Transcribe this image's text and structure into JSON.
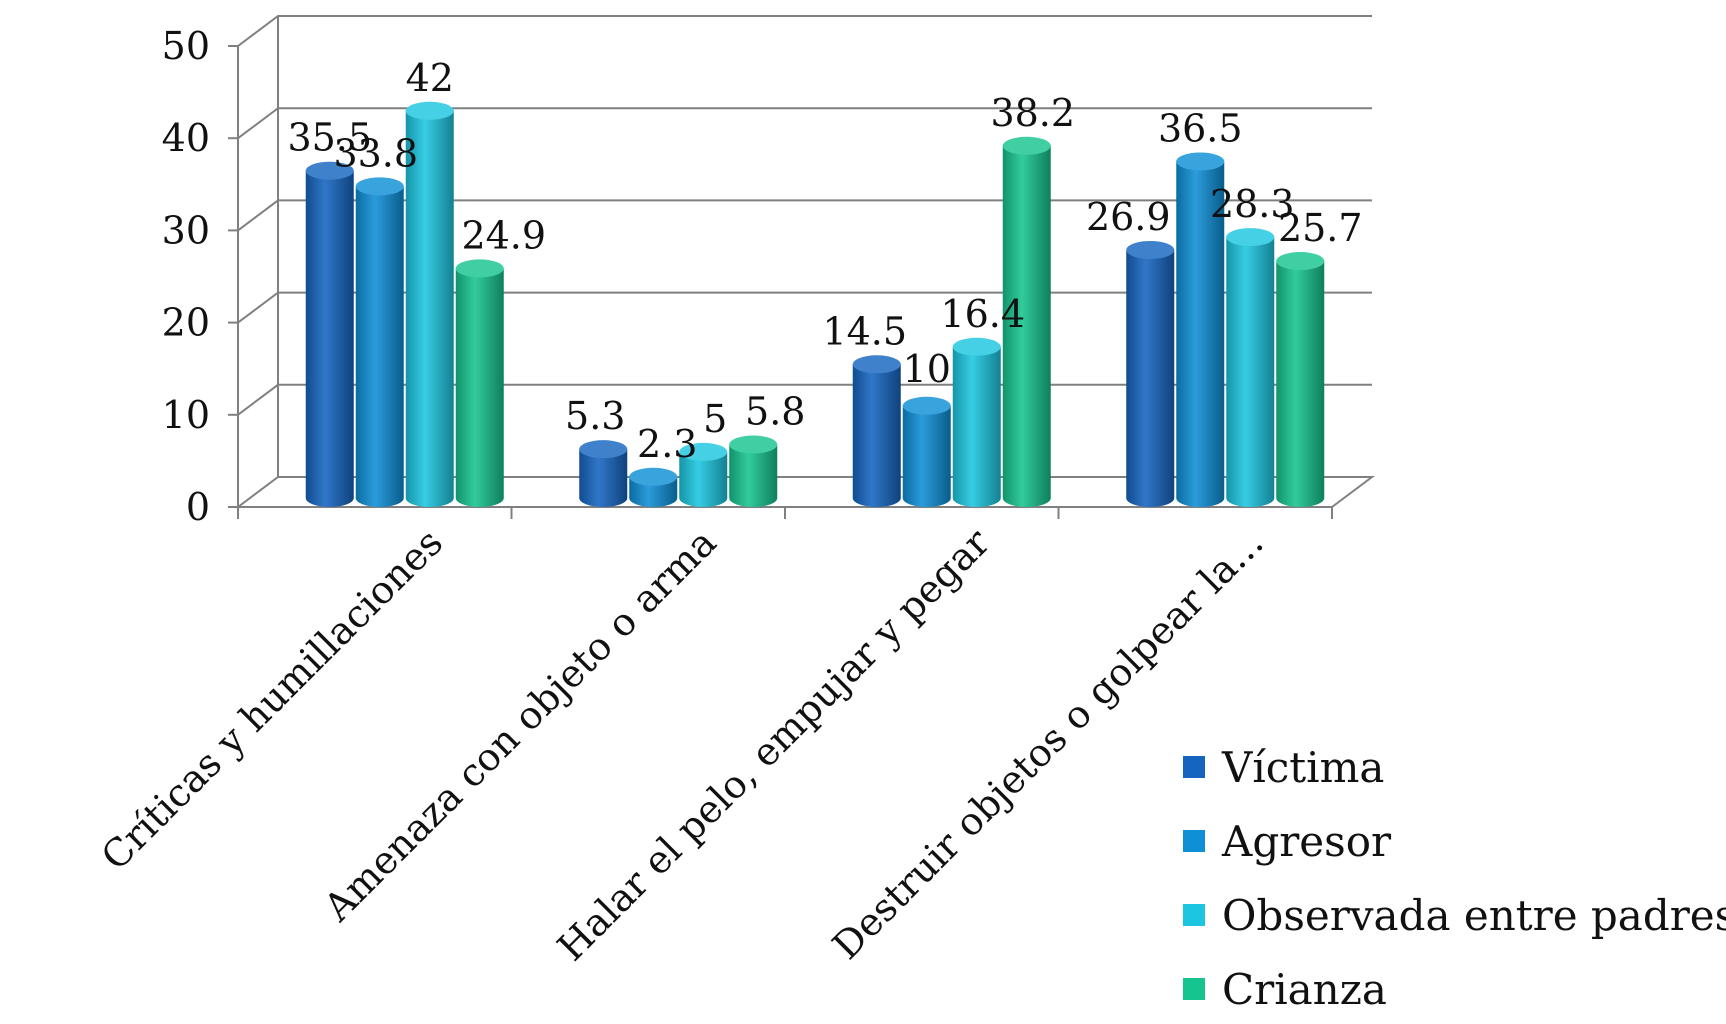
{
  "chart_data": {
    "type": "bar",
    "title": "",
    "xlabel": "",
    "ylabel": "",
    "ylim": [
      0,
      50
    ],
    "yticks": [
      "0",
      "10",
      "20",
      "30",
      "40",
      "50"
    ],
    "grid": true,
    "legend_position": "bottom-right",
    "categories": [
      "Críticas y humillaciones",
      "Amenaza  con objeto o arma",
      "Halar el pelo, empujar y pegar",
      "Destruir objetos o golpear la..."
    ],
    "series": [
      {
        "name": "Víctima",
        "color": "#1565C0",
        "values": [
          35.5,
          5.3,
          14.5,
          26.9
        ],
        "labels": [
          "35.5",
          "5.3",
          "14.5",
          "26.9"
        ]
      },
      {
        "name": "Agresor",
        "color": "#0E8FD6",
        "values": [
          33.8,
          2.3,
          10,
          36.5
        ],
        "labels": [
          "33.8",
          "2.3",
          "10",
          "36.5"
        ]
      },
      {
        "name": "Observada entre padres",
        "color": "#1CC6E0",
        "values": [
          42,
          5,
          16.4,
          28.3
        ],
        "labels": [
          "42",
          "5",
          "16.4",
          "28.3"
        ]
      },
      {
        "name": "Crianza",
        "color": "#16C48F",
        "values": [
          24.9,
          5.8,
          38.2,
          25.7
        ],
        "labels": [
          "24.9",
          "5.8",
          "38.2",
          "25.7"
        ]
      }
    ]
  }
}
